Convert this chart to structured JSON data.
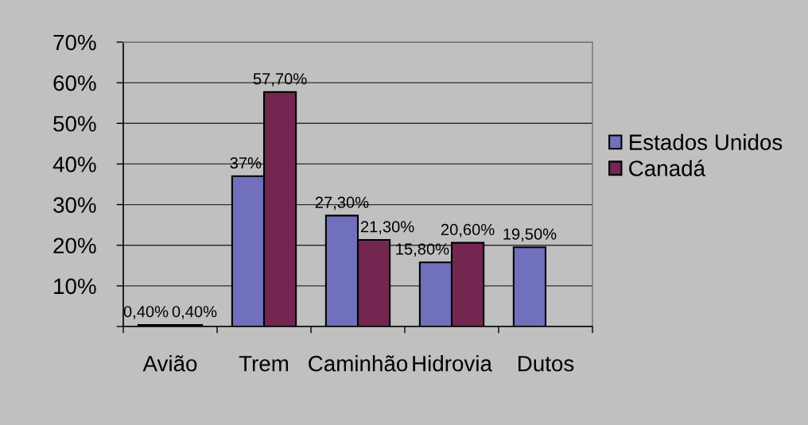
{
  "chart_data": {
    "type": "bar",
    "categories": [
      "Avião",
      "Trem",
      "Caminhão",
      "Hidrovia",
      "Dutos"
    ],
    "series": [
      {
        "name": "Estados Unidos",
        "color": "#7070bc",
        "values": [
          0.4,
          37,
          27.3,
          15.8,
          19.5
        ],
        "value_labels": [
          "0,40%",
          "37%",
          "27,30%",
          "15,80%",
          "19,50%"
        ]
      },
      {
        "name": "Canadá",
        "color": "#722650",
        "values": [
          0.4,
          57.7,
          21.3,
          20.6,
          null
        ],
        "value_labels": [
          "0,40%",
          "57,70%",
          "21,30%",
          "20,60%",
          null
        ]
      }
    ],
    "ylim": [
      0,
      70
    ],
    "yticks": [
      {
        "value": 0,
        "label": null
      },
      {
        "value": 10,
        "label": "10%"
      },
      {
        "value": 20,
        "label": "20%"
      },
      {
        "value": 30,
        "label": "30%"
      },
      {
        "value": 40,
        "label": "40%"
      },
      {
        "value": 50,
        "label": "50%"
      },
      {
        "value": 60,
        "label": "60%"
      },
      {
        "value": 70,
        "label": "70%"
      }
    ],
    "grid": "y",
    "legend": "right"
  }
}
